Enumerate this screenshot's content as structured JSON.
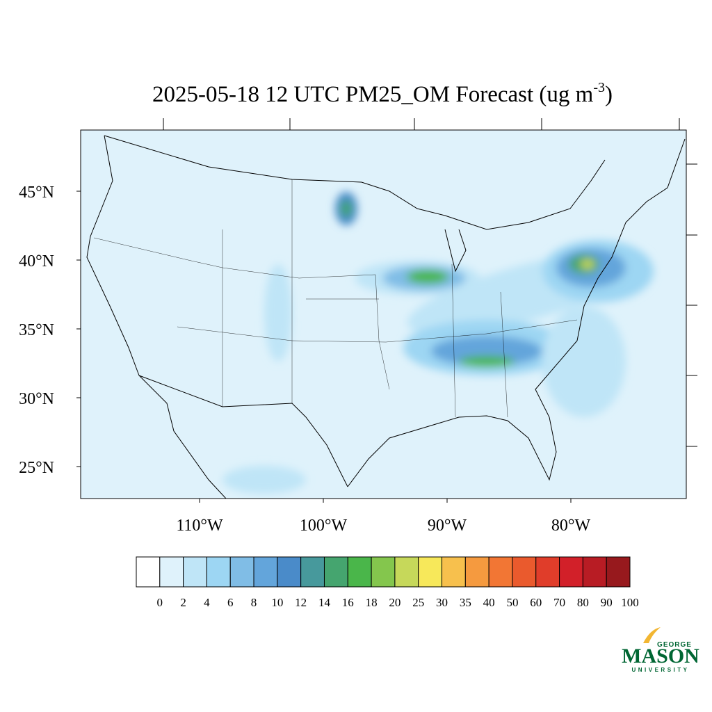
{
  "title": {
    "text": "2025-05-18 12 UTC PM25_OM Forecast (ug m",
    "superscript": "-3",
    "close": ")"
  },
  "lat_labels": [
    "45°N",
    "40°N",
    "35°N",
    "30°N",
    "25°N"
  ],
  "lon_labels": [
    "110°W",
    "100°W",
    "90°W",
    "80°W"
  ],
  "colorbar": {
    "colors": [
      "#ffffff",
      "#dff2fb",
      "#bfe5f7",
      "#9dd6f3",
      "#80bde6",
      "#63a5db",
      "#4a8bc9",
      "#47999c",
      "#45a56f",
      "#4ab64a",
      "#84c64d",
      "#c6d85a",
      "#f7e85a",
      "#f7c04d",
      "#f59a3f",
      "#f27634",
      "#ea5a2d",
      "#e03d2a",
      "#d22029",
      "#b81c24",
      "#97191d"
    ],
    "labels": [
      "0",
      "2",
      "4",
      "6",
      "8",
      "10",
      "12",
      "14",
      "16",
      "18",
      "20",
      "25",
      "30",
      "35",
      "40",
      "50",
      "60",
      "70",
      "80",
      "90",
      "100"
    ]
  },
  "logo": {
    "top": "GEORGE",
    "main": "MASON",
    "bottom": "UNIVERSITY"
  }
}
